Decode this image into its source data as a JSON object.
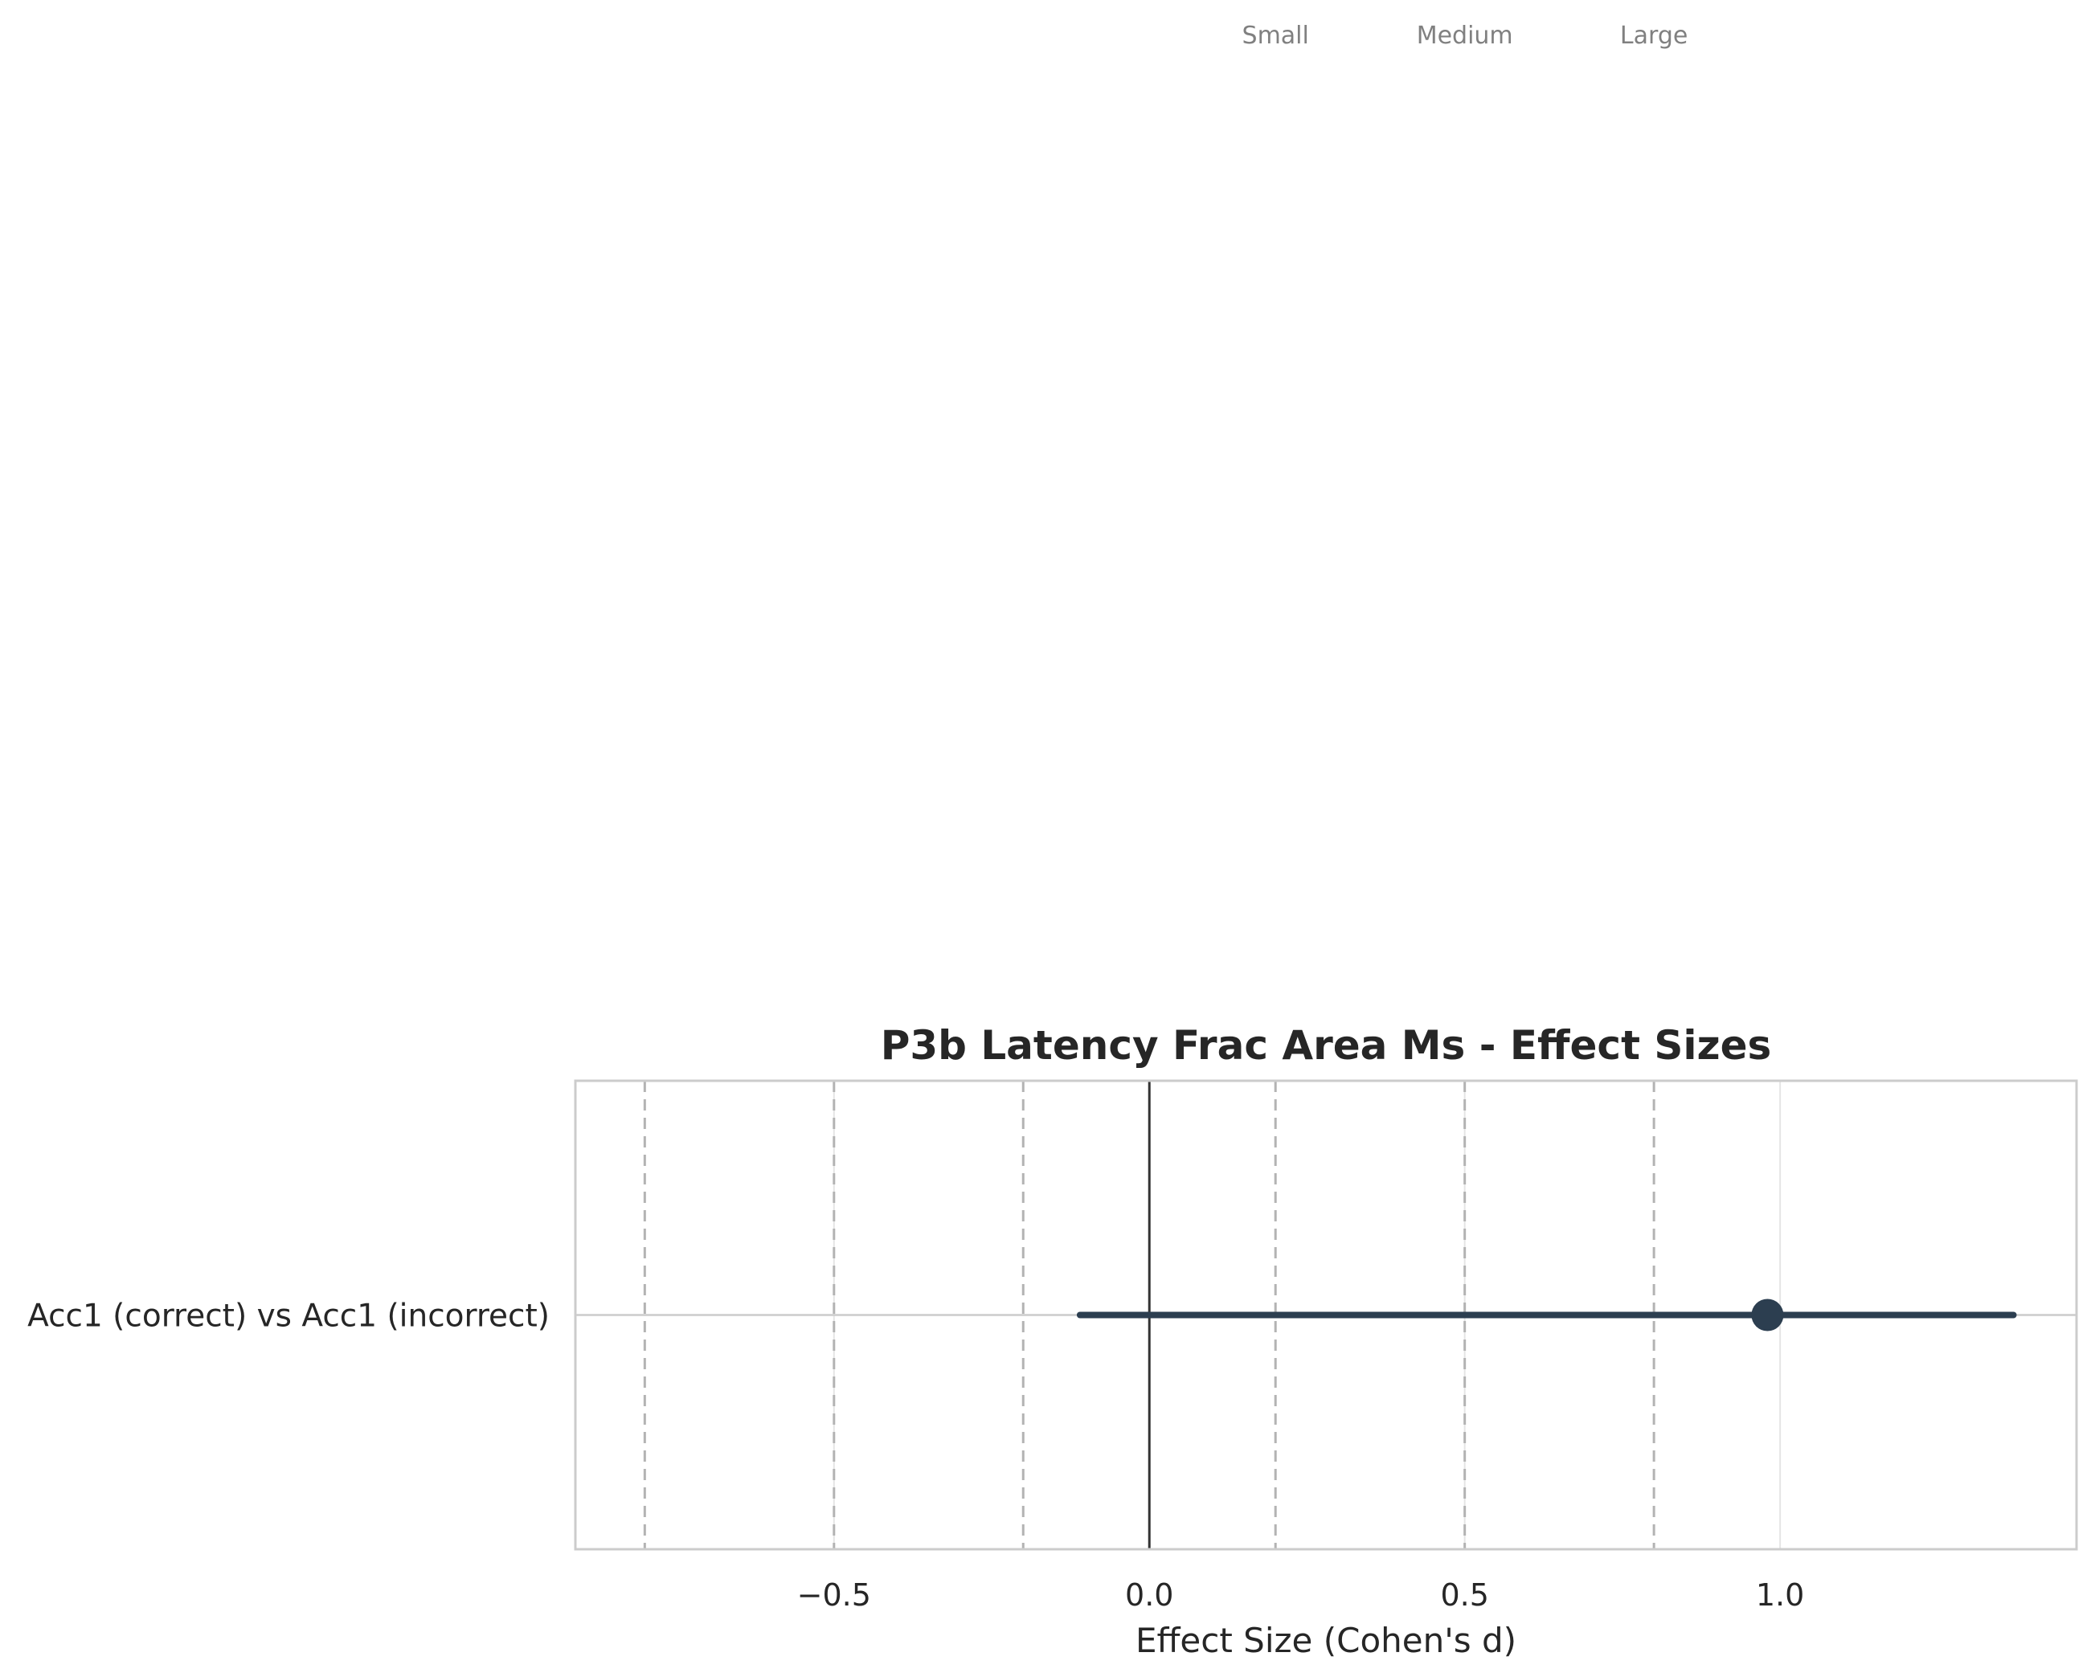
{
  "chart_data": {
    "type": "forest",
    "title": "P3b Latency Frac Area Ms - Effect Sizes",
    "xlabel": "Effect Size (Cohen's d)",
    "ylabel": "",
    "xlim": [
      -0.91,
      1.47
    ],
    "xticks": [
      -0.5,
      0.0,
      0.5,
      1.0
    ],
    "xtick_labels": [
      "−0.5",
      "0.0",
      "0.5",
      "1.0"
    ],
    "grid": true,
    "comparisons": [
      {
        "label": "Acc1 (correct) vs Acc1 (incorrect)",
        "d": 0.98,
        "ci_low": -0.11,
        "ci_high": 1.37
      }
    ],
    "thresholds": [
      {
        "label": "Small",
        "value": 0.2
      },
      {
        "label": "Medium",
        "value": 0.5
      },
      {
        "label": "Large",
        "value": 0.8
      }
    ],
    "negative_thresholds": [
      -0.2,
      -0.5,
      -0.8
    ],
    "colors": {
      "point": "#2c3e50",
      "threshold": "#b3b3b3",
      "zero_line": "#333333",
      "grid": "#e5e5e5",
      "frame": "#cccccc"
    }
  }
}
